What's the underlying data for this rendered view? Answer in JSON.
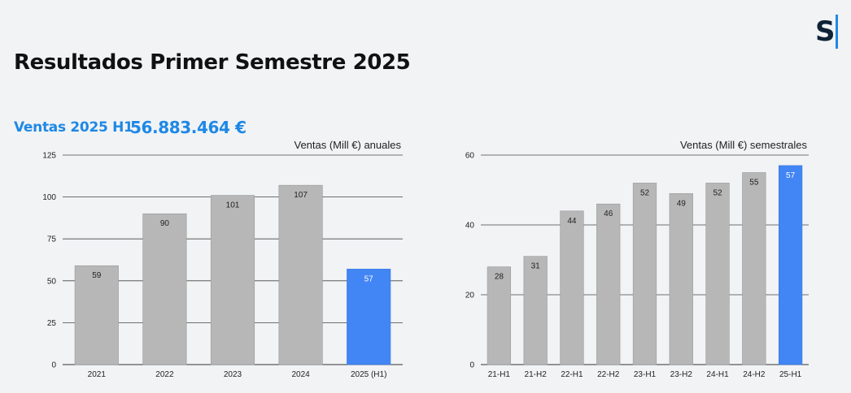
{
  "header": {
    "logo_letter": "S",
    "title": "Resultados Primer Semestre 2025"
  },
  "summary": {
    "label": "Ventas 2025 H1",
    "value": "56.883.464 €"
  },
  "colors": {
    "accent": "#1e88e5",
    "bar_gray": "#b7b7b7",
    "bar_blue": "#4285f4",
    "gridline": "#444444"
  },
  "chart_data": [
    {
      "type": "bar",
      "title": "Ventas (Mill €) anuales",
      "categories": [
        "2021",
        "2022",
        "2023",
        "2024",
        "2025 (H1)"
      ],
      "values": [
        59,
        90,
        101,
        107,
        57
      ],
      "highlight_index": 4,
      "yticks": [
        0,
        25,
        50,
        75,
        100,
        125
      ],
      "ylim": [
        0,
        125
      ],
      "xlabel": "",
      "ylabel": "",
      "grid": true
    },
    {
      "type": "bar",
      "title": "Ventas (Mill €) semestrales",
      "categories": [
        "21-H1",
        "21-H2",
        "22-H1",
        "22-H2",
        "23-H1",
        "23-H2",
        "24-H1",
        "24-H2",
        "25-H1"
      ],
      "values": [
        28,
        31,
        44,
        46,
        52,
        49,
        52,
        55,
        57
      ],
      "highlight_index": 8,
      "yticks": [
        0,
        20,
        40,
        60
      ],
      "ylim": [
        0,
        60
      ],
      "xlabel": "",
      "ylabel": "",
      "grid": true
    }
  ]
}
